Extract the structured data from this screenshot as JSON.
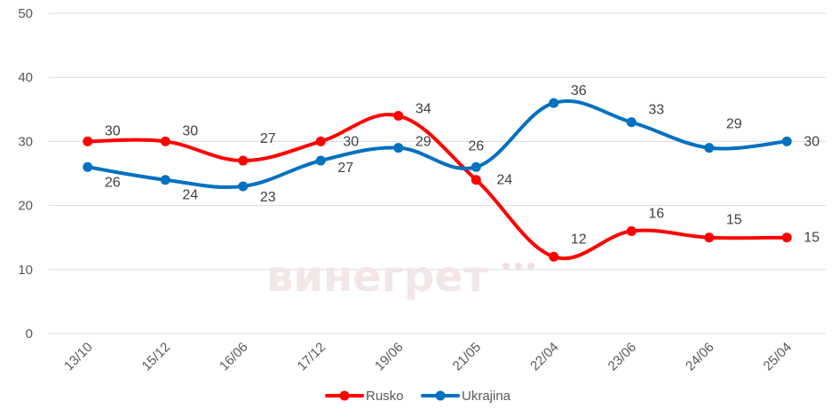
{
  "watermark": "винегрет",
  "chart_data": {
    "type": "line",
    "title": "",
    "xlabel": "",
    "ylabel": "",
    "categories": [
      "13/10",
      "15/12",
      "16/06",
      "17/12",
      "19/06",
      "21/05",
      "22/04",
      "23/06",
      "24/06",
      "25/04"
    ],
    "ylim": [
      0,
      50
    ],
    "yticks": [
      0,
      10,
      20,
      30,
      40,
      50
    ],
    "grid": true,
    "legend_position": "bottom",
    "series": [
      {
        "name": "Rusko",
        "color": "#ff0000",
        "values": [
          30,
          30,
          27,
          30,
          34,
          24,
          12,
          16,
          15,
          15
        ]
      },
      {
        "name": "Ukrajina",
        "color": "#0070c0",
        "values": [
          26,
          24,
          23,
          27,
          29,
          26,
          36,
          33,
          29,
          30
        ]
      }
    ]
  }
}
